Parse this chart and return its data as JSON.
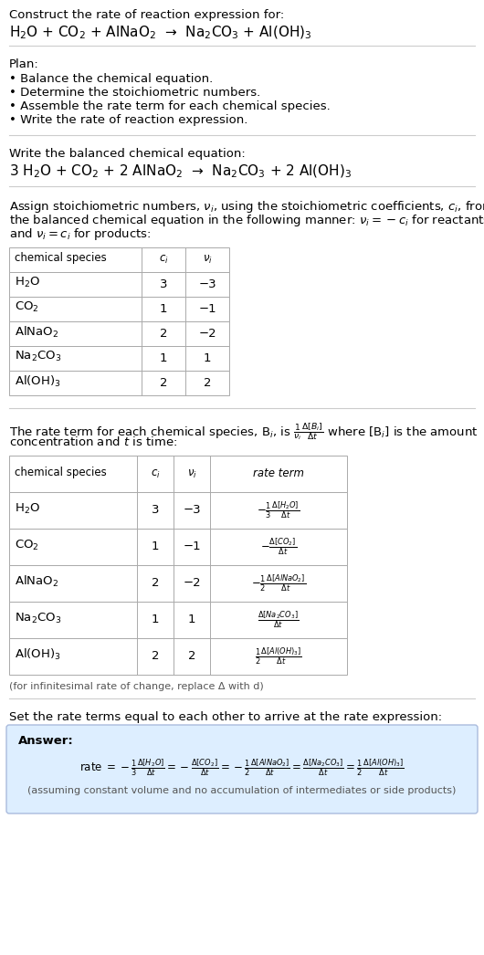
{
  "title_line1": "Construct the rate of reaction expression for:",
  "title_line2": "H$_2$O + CO$_2$ + AlNaO$_2$  →  Na$_2$CO$_3$ + Al(OH)$_3$",
  "plan_header": "Plan:",
  "plan_items": [
    "• Balance the chemical equation.",
    "• Determine the stoichiometric numbers.",
    "• Assemble the rate term for each chemical species.",
    "• Write the rate of reaction expression."
  ],
  "balanced_header": "Write the balanced chemical equation:",
  "balanced_eq": "3 H$_2$O + CO$_2$ + 2 AlNaO$_2$  →  Na$_2$CO$_3$ + 2 Al(OH)$_3$",
  "stoich_intro_lines": [
    "Assign stoichiometric numbers, $\\nu_i$, using the stoichiometric coefficients, $c_i$, from",
    "the balanced chemical equation in the following manner: $\\nu_i = -c_i$ for reactants",
    "and $\\nu_i = c_i$ for products:"
  ],
  "table1_headers": [
    "chemical species",
    "$c_i$",
    "$\\nu_i$"
  ],
  "table1_rows": [
    [
      "H$_2$O",
      "3",
      "−3"
    ],
    [
      "CO$_2$",
      "1",
      "−1"
    ],
    [
      "AlNaO$_2$",
      "2",
      "−2"
    ],
    [
      "Na$_2$CO$_3$",
      "1",
      "1"
    ],
    [
      "Al(OH)$_3$",
      "2",
      "2"
    ]
  ],
  "rate_intro_lines": [
    "The rate term for each chemical species, B$_i$, is $\\frac{1}{\\nu_i}\\frac{\\Delta[B_i]}{\\Delta t}$ where [B$_i$] is the amount",
    "concentration and $t$ is time:"
  ],
  "table2_headers": [
    "chemical species",
    "$c_i$",
    "$\\nu_i$",
    "rate term"
  ],
  "table2_rows": [
    [
      "H$_2$O",
      "3",
      "−3",
      "$-\\frac{1}{3}\\frac{\\Delta[H_2O]}{\\Delta t}$"
    ],
    [
      "CO$_2$",
      "1",
      "−1",
      "$-\\frac{\\Delta[CO_2]}{\\Delta t}$"
    ],
    [
      "AlNaO$_2$",
      "2",
      "−2",
      "$-\\frac{1}{2}\\frac{\\Delta[AlNaO_2]}{\\Delta t}$"
    ],
    [
      "Na$_2$CO$_3$",
      "1",
      "1",
      "$\\frac{\\Delta[Na_2CO_3]}{\\Delta t}$"
    ],
    [
      "Al(OH)$_3$",
      "2",
      "2",
      "$\\frac{1}{2}\\frac{\\Delta[Al(OH)_3]}{\\Delta t}$"
    ]
  ],
  "infinitesimal_note": "(for infinitesimal rate of change, replace Δ with d)",
  "set_equal_text": "Set the rate terms equal to each other to arrive at the rate expression:",
  "answer_label": "Answer:",
  "answer_eq": "rate $= -\\frac{1}{3}\\frac{\\Delta[H_2O]}{\\Delta t} = -\\frac{\\Delta[CO_2]}{\\Delta t} = -\\frac{1}{2}\\frac{\\Delta[AlNaO_2]}{\\Delta t} = \\frac{\\Delta[Na_2CO_3]}{\\Delta t} = \\frac{1}{2}\\frac{\\Delta[Al(OH)_3]}{\\Delta t}$",
  "answer_note": "(assuming constant volume and no accumulation of intermediates or side products)",
  "bg_color": "#ffffff",
  "answer_box_color": "#ddeeff",
  "answer_box_edge": "#aabbdd",
  "table_border_color": "#aaaaaa",
  "rule_color": "#cccccc",
  "font_size": 9.5,
  "font_size_large": 11.0,
  "font_size_small": 8.5,
  "font_size_note": 8.0
}
